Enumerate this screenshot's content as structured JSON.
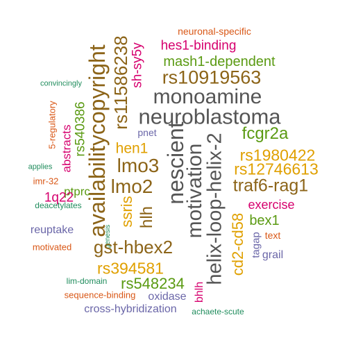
{
  "palette": {
    "dark_gray": "#555555",
    "brown": "#8c6418",
    "olive_green": "#5a9a12",
    "amber": "#e0a000",
    "magenta": "#d6006e",
    "orange_red": "#d95716",
    "teal_green": "#1f8c5c",
    "slate_purple": "#6a66a8"
  },
  "words": {
    "w01": "neuronal-specific",
    "w02": "hes1-binding",
    "w03": "mash1-dependent",
    "w04": "rs10919563",
    "w05": "monoamine",
    "w06": "neuroblastoma",
    "w07": "rs11586238",
    "w08": "sh-sy5y",
    "w09": "availabilitycopyright",
    "w10": "convincingly",
    "w11": "rs540386",
    "w12": "5-regulatory",
    "w13": "abstracts",
    "w14": "pnet",
    "w15": "fcgr2a",
    "w16": "hen1",
    "w17": "lmo3",
    "w18": "nescient",
    "w19": "motivation",
    "w20": "helix-loop-helix-2",
    "w21": "rs1980422",
    "w22": "rs12746613",
    "w23": "applies",
    "w24": "lmo2",
    "w25": "traf6-rag1",
    "w26": "imr-32",
    "w27": "ptprc",
    "w28": "1q22",
    "w29": "deacetylates",
    "w30": "ssris",
    "w31": "hlh",
    "w32": "exercise",
    "w33": "cd2-cd58",
    "w34": "bex1",
    "w35": "reuptake",
    "w36": "genesis",
    "w37": "text",
    "w38": "gst-hbex2",
    "w39": "tagap",
    "w40": "motivated",
    "w41": "grail",
    "w42": "rs394581",
    "w43": "lim-domain",
    "w44": "rs548234",
    "w45": "bhlh",
    "w46": "sequence-binding",
    "w47": "oxidase",
    "w48": "cross-hybridization",
    "w49": "achaete-scute"
  }
}
